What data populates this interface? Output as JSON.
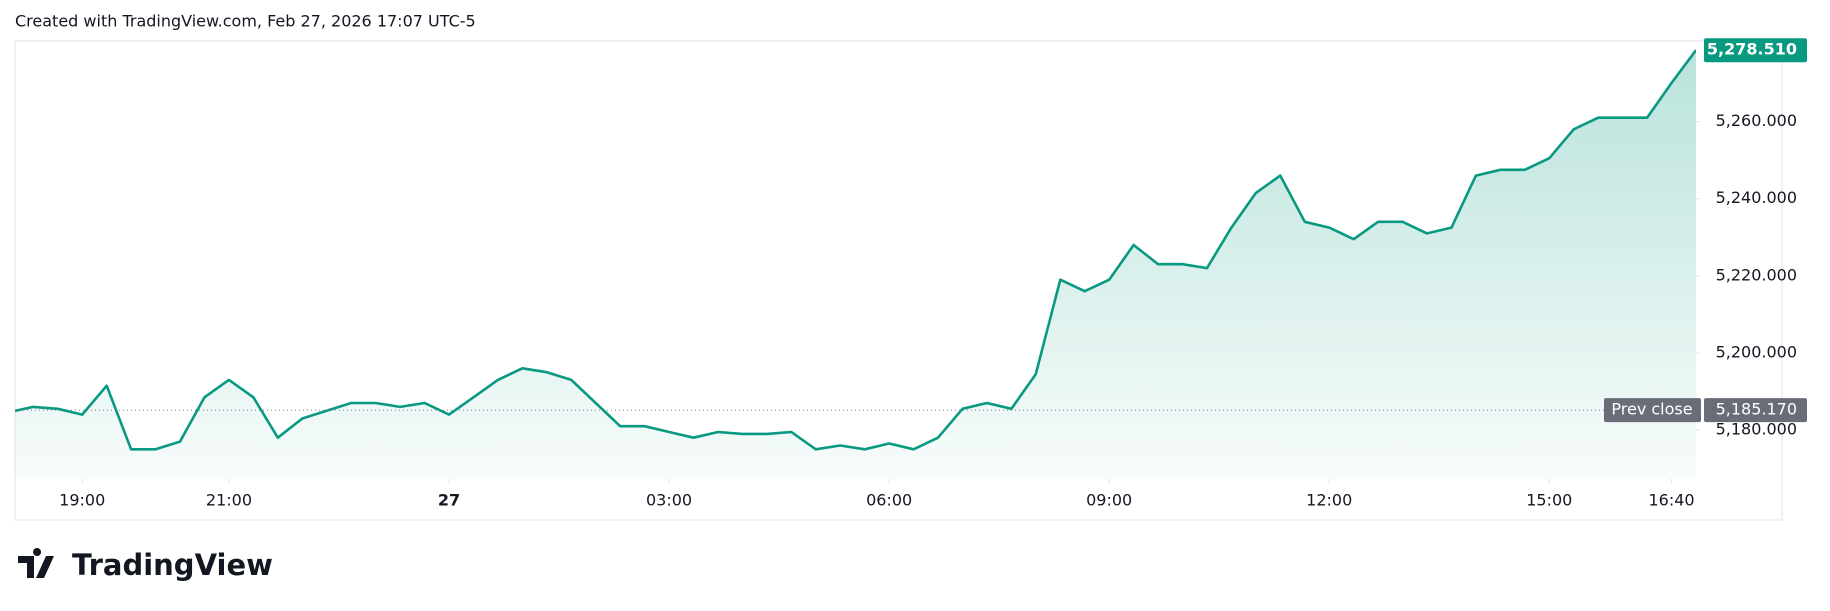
{
  "header": "Created with TradingView.com, Feb 27, 2026 17:07 UTC-5",
  "logo": "TradingView",
  "chart_data": {
    "type": "line",
    "color": "#089981",
    "x": [
      "18:05",
      "18:20",
      "18:40",
      "19:00",
      "19:20",
      "19:40",
      "20:00",
      "20:20",
      "20:40",
      "21:00",
      "21:20",
      "21:40",
      "22:00",
      "22:20",
      "22:40",
      "23:00",
      "23:20",
      "23:40",
      "00:00",
      "00:20",
      "00:40",
      "01:00",
      "01:20",
      "01:40",
      "02:00",
      "02:20",
      "02:40",
      "03:00",
      "03:20",
      "03:40",
      "04:00",
      "04:20",
      "04:40",
      "05:00",
      "05:20",
      "05:40",
      "06:00",
      "06:20",
      "06:40",
      "07:00",
      "07:20",
      "07:40",
      "08:00",
      "08:20",
      "08:40",
      "09:00",
      "09:20",
      "09:40",
      "10:00",
      "10:20",
      "10:40",
      "11:00",
      "11:20",
      "11:40",
      "12:00",
      "12:20",
      "12:40",
      "13:00",
      "13:20",
      "13:40",
      "14:00",
      "14:20",
      "14:40",
      "15:00",
      "15:20",
      "15:40",
      "16:00",
      "16:20",
      "16:40",
      "17:00"
    ],
    "values": [
      5185,
      5186,
      5185.5,
      5184,
      5191.5,
      5175,
      5175,
      5177,
      5188.5,
      5193,
      5188.5,
      5178,
      5183,
      5185,
      5187,
      5187,
      5186,
      5187,
      5184,
      5188.5,
      5193,
      5196,
      5195,
      5193,
      5187,
      5181,
      5181,
      5179.5,
      5178,
      5179.5,
      5179,
      5179,
      5179.5,
      5175,
      5176,
      5175,
      5176.5,
      5175,
      5178,
      5185.5,
      5187,
      5185.5,
      5194.5,
      5219,
      5216,
      5219,
      5228,
      5223,
      5223,
      5222,
      5232.5,
      5241.5,
      5246,
      5234,
      5232.5,
      5229.5,
      5234,
      5234,
      5231,
      5232.5,
      5246,
      5247.5,
      5247.5,
      5250.5,
      5258,
      5261,
      5261,
      5261,
      5270,
      5278.51
    ],
    "xlim": [
      "18:05",
      "17:00"
    ],
    "xticks": [
      "19:00",
      "21:00",
      {
        "value": "00:00",
        "label": "27"
      },
      "03:00",
      "06:00",
      "09:00",
      "12:00",
      "15:00",
      "16:40"
    ],
    "ylim": [
      5167.3,
      5280.9
    ],
    "yticks": [
      {
        "value": 5180,
        "label": "5,180.000"
      },
      {
        "value": 5200,
        "label": "5,200.000"
      },
      {
        "value": 5220,
        "label": "5,220.000"
      },
      {
        "value": 5240,
        "label": "5,240.000"
      },
      {
        "value": 5260,
        "label": "5,260.000"
      }
    ],
    "last_price": {
      "value": 5278.51,
      "label": "5,278.510"
    },
    "prev_close": {
      "name": "Prev close",
      "value": 5185.17,
      "label": "5,185.170"
    }
  }
}
